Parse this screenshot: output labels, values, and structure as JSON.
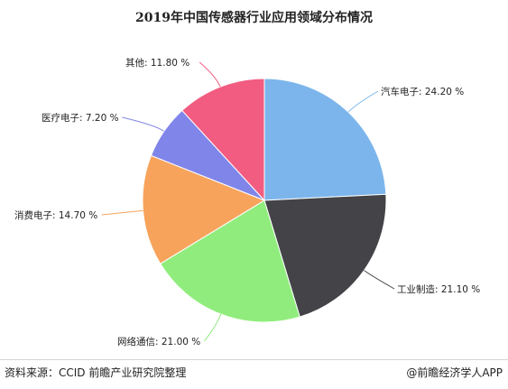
{
  "title": "2019年中国传感器行业应用领域分布情况",
  "chart_data": {
    "type": "pie",
    "unit": "%",
    "slices": [
      {
        "name": "汽车电子",
        "value": 24.2,
        "label": "汽车电子: 24.20 %",
        "color": "#7cb5ec"
      },
      {
        "name": "工业制造",
        "value": 21.1,
        "label": "工业制造: 21.10 %",
        "color": "#434348"
      },
      {
        "name": "网络通信",
        "value": 21.0,
        "label": "网络通信: 21.00 %",
        "color": "#90ed7d"
      },
      {
        "name": "消费电子",
        "value": 14.7,
        "label": "消费电子: 14.70 %",
        "color": "#f7a35c"
      },
      {
        "name": "医疗电子",
        "value": 7.2,
        "label": "医疗电子: 7.20 %",
        "color": "#8085e9"
      },
      {
        "name": "其他",
        "value": 11.8,
        "label": "其他: 11.80 %",
        "color": "#f15c80"
      }
    ]
  },
  "footer": {
    "source": "资料来源：CCID 前瞻产业研究院整理",
    "brand": "@前瞻经济学人APP"
  }
}
